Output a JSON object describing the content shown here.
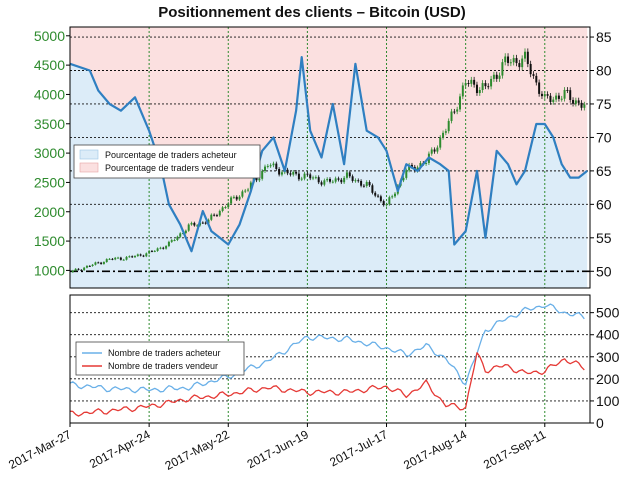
{
  "colors": {
    "price_up": "#2e8b2e",
    "price_down": "#111111",
    "buyers_pct": "#2f7fc1",
    "buyers_fill": "#dcecf8",
    "sellers_fill": "#fbe0e0",
    "buyers_count": "#6ab0e8",
    "sellers_count": "#e53935",
    "grid_v": "#2e8b2e",
    "grid_h": "#111111"
  },
  "chart_data": [
    {
      "type": "line",
      "title": "Positionnement des clients – Bitcoin (USD)",
      "legend": {
        "placement": "middle-left",
        "entries": [
          "Pourcentage de traders acheteur",
          "Pourcentage de traders vendeur"
        ]
      },
      "x_ticks": [
        "2017-Mar-27",
        "2017-Apr-24",
        "2017-May-22",
        "2017-Jun-19",
        "2017-Jul-17",
        "2017-Aug-14",
        "2017-Sep-11"
      ],
      "x_range": [
        "2017-Mar-27",
        "2017-Sep-27"
      ],
      "y_left": {
        "ticks": [
          1000,
          1500,
          2000,
          2500,
          3000,
          3500,
          4000,
          4500,
          5000
        ],
        "range": [
          700,
          5150
        ]
      },
      "y_right": {
        "ticks": [
          50,
          55,
          60,
          65,
          70,
          75,
          80,
          85
        ],
        "range": [
          47.5,
          86.5
        ]
      },
      "reference_line": 50,
      "grid": true,
      "price": [
        {
          "date": "2017-03-27",
          "value": 970
        },
        {
          "date": "2017-04-03",
          "value": 1080
        },
        {
          "date": "2017-04-10",
          "value": 1190
        },
        {
          "date": "2017-04-17",
          "value": 1220
        },
        {
          "date": "2017-04-24",
          "value": 1300
        },
        {
          "date": "2017-05-01",
          "value": 1450
        },
        {
          "date": "2017-05-08",
          "value": 1750
        },
        {
          "date": "2017-05-15",
          "value": 1850
        },
        {
          "date": "2017-05-22",
          "value": 2150
        },
        {
          "date": "2017-05-29",
          "value": 2400
        },
        {
          "date": "2017-06-05",
          "value": 2800
        },
        {
          "date": "2017-06-12",
          "value": 2650
        },
        {
          "date": "2017-06-19",
          "value": 2600
        },
        {
          "date": "2017-06-26",
          "value": 2500
        },
        {
          "date": "2017-07-03",
          "value": 2600
        },
        {
          "date": "2017-07-10",
          "value": 2450
        },
        {
          "date": "2017-07-17",
          "value": 2100
        },
        {
          "date": "2017-07-24",
          "value": 2700
        },
        {
          "date": "2017-07-31",
          "value": 2850
        },
        {
          "date": "2017-08-07",
          "value": 3400
        },
        {
          "date": "2017-08-14",
          "value": 4200
        },
        {
          "date": "2017-08-21",
          "value": 4100
        },
        {
          "date": "2017-08-28",
          "value": 4550
        },
        {
          "date": "2017-09-04",
          "value": 4600
        },
        {
          "date": "2017-09-11",
          "value": 3900
        },
        {
          "date": "2017-09-18",
          "value": 4000
        },
        {
          "date": "2017-09-25",
          "value": 3800
        }
      ],
      "buyers_pct": [
        {
          "date": "2017-03-27",
          "value": 81
        },
        {
          "date": "2017-04-03",
          "value": 80
        },
        {
          "date": "2017-04-06",
          "value": 77
        },
        {
          "date": "2017-04-10",
          "value": 75
        },
        {
          "date": "2017-04-14",
          "value": 74
        },
        {
          "date": "2017-04-19",
          "value": 76
        },
        {
          "date": "2017-04-24",
          "value": 71
        },
        {
          "date": "2017-04-28",
          "value": 66
        },
        {
          "date": "2017-05-01",
          "value": 60
        },
        {
          "date": "2017-05-05",
          "value": 57
        },
        {
          "date": "2017-05-09",
          "value": 53
        },
        {
          "date": "2017-05-13",
          "value": 59
        },
        {
          "date": "2017-05-16",
          "value": 56
        },
        {
          "date": "2017-05-19",
          "value": 55
        },
        {
          "date": "2017-05-22",
          "value": 54
        },
        {
          "date": "2017-05-26",
          "value": 57
        },
        {
          "date": "2017-05-30",
          "value": 62
        },
        {
          "date": "2017-06-03",
          "value": 68
        },
        {
          "date": "2017-06-07",
          "value": 70
        },
        {
          "date": "2017-06-11",
          "value": 65
        },
        {
          "date": "2017-06-15",
          "value": 74
        },
        {
          "date": "2017-06-17",
          "value": 82
        },
        {
          "date": "2017-06-20",
          "value": 71
        },
        {
          "date": "2017-06-24",
          "value": 67
        },
        {
          "date": "2017-06-28",
          "value": 75
        },
        {
          "date": "2017-07-02",
          "value": 66
        },
        {
          "date": "2017-07-06",
          "value": 81
        },
        {
          "date": "2017-07-10",
          "value": 71
        },
        {
          "date": "2017-07-14",
          "value": 70
        },
        {
          "date": "2017-07-17",
          "value": 68
        },
        {
          "date": "2017-07-21",
          "value": 62
        },
        {
          "date": "2017-07-24",
          "value": 66
        },
        {
          "date": "2017-07-28",
          "value": 65
        },
        {
          "date": "2017-08-01",
          "value": 67
        },
        {
          "date": "2017-08-05",
          "value": 66
        },
        {
          "date": "2017-08-08",
          "value": 65
        },
        {
          "date": "2017-08-10",
          "value": 54
        },
        {
          "date": "2017-08-14",
          "value": 56
        },
        {
          "date": "2017-08-18",
          "value": 65
        },
        {
          "date": "2017-08-21",
          "value": 55
        },
        {
          "date": "2017-08-25",
          "value": 68
        },
        {
          "date": "2017-08-29",
          "value": 66
        },
        {
          "date": "2017-09-01",
          "value": 63
        },
        {
          "date": "2017-09-04",
          "value": 65
        },
        {
          "date": "2017-09-08",
          "value": 72
        },
        {
          "date": "2017-09-11",
          "value": 72
        },
        {
          "date": "2017-09-14",
          "value": 70
        },
        {
          "date": "2017-09-17",
          "value": 66
        },
        {
          "date": "2017-09-20",
          "value": 64
        },
        {
          "date": "2017-09-23",
          "value": 64
        },
        {
          "date": "2017-09-26",
          "value": 65
        }
      ]
    },
    {
      "type": "line",
      "legend": {
        "placement": "middle-left",
        "entries": [
          "Nombre de traders acheteur",
          "Nombre de traders vendeur"
        ]
      },
      "y_right": {
        "ticks": [
          0,
          100,
          200,
          300,
          400,
          500
        ],
        "range": [
          0,
          580
        ]
      },
      "grid": true,
      "series": [
        {
          "name": "Nombre de traders acheteur",
          "points": [
            {
              "date": "2017-03-27",
              "value": 175
            },
            {
              "date": "2017-04-10",
              "value": 155
            },
            {
              "date": "2017-04-24",
              "value": 150
            },
            {
              "date": "2017-05-08",
              "value": 160
            },
            {
              "date": "2017-05-22",
              "value": 210
            },
            {
              "date": "2017-06-05",
              "value": 280
            },
            {
              "date": "2017-06-19",
              "value": 390
            },
            {
              "date": "2017-07-03",
              "value": 380
            },
            {
              "date": "2017-07-17",
              "value": 340
            },
            {
              "date": "2017-07-24",
              "value": 310
            },
            {
              "date": "2017-07-31",
              "value": 350
            },
            {
              "date": "2017-08-07",
              "value": 290
            },
            {
              "date": "2017-08-14",
              "value": 180
            },
            {
              "date": "2017-08-21",
              "value": 420
            },
            {
              "date": "2017-08-28",
              "value": 470
            },
            {
              "date": "2017-09-04",
              "value": 510
            },
            {
              "date": "2017-09-11",
              "value": 535
            },
            {
              "date": "2017-09-18",
              "value": 500
            },
            {
              "date": "2017-09-25",
              "value": 480
            }
          ]
        },
        {
          "name": "Nombre de traders vendeur",
          "points": [
            {
              "date": "2017-03-27",
              "value": 40
            },
            {
              "date": "2017-04-10",
              "value": 55
            },
            {
              "date": "2017-04-24",
              "value": 75
            },
            {
              "date": "2017-05-08",
              "value": 110
            },
            {
              "date": "2017-05-22",
              "value": 130
            },
            {
              "date": "2017-06-05",
              "value": 160
            },
            {
              "date": "2017-06-19",
              "value": 140
            },
            {
              "date": "2017-07-03",
              "value": 140
            },
            {
              "date": "2017-07-17",
              "value": 165
            },
            {
              "date": "2017-07-24",
              "value": 125
            },
            {
              "date": "2017-07-31",
              "value": 180
            },
            {
              "date": "2017-08-07",
              "value": 80
            },
            {
              "date": "2017-08-14",
              "value": 70
            },
            {
              "date": "2017-08-18",
              "value": 315
            },
            {
              "date": "2017-08-21",
              "value": 240
            },
            {
              "date": "2017-08-28",
              "value": 260
            },
            {
              "date": "2017-09-04",
              "value": 225
            },
            {
              "date": "2017-09-11",
              "value": 235
            },
            {
              "date": "2017-09-18",
              "value": 290
            },
            {
              "date": "2017-09-25",
              "value": 250
            }
          ]
        }
      ]
    }
  ]
}
